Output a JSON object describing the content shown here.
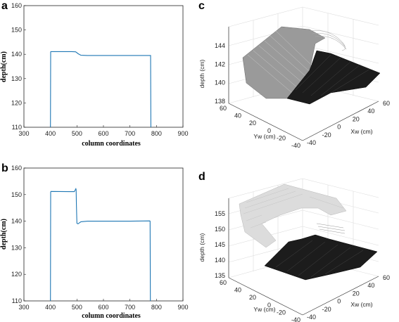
{
  "chart_data": [
    {
      "panel": "a",
      "type": "line",
      "xlabel": "column coordinates",
      "ylabel": "depth(cm)",
      "xlim": [
        300,
        900
      ],
      "ylim": [
        110,
        160
      ],
      "xticks": [
        "300",
        "400",
        "500",
        "600",
        "700",
        "800",
        "900"
      ],
      "yticks": [
        "110",
        "120",
        "130",
        "140",
        "150",
        "160"
      ],
      "color": "#1f77b4",
      "series": [
        {
          "x": [
            400,
            401,
            402,
            480,
            495,
            505,
            515,
            540,
            700,
            777,
            778,
            779
          ],
          "y": [
            110,
            141,
            141.1,
            141.1,
            141.0,
            140.2,
            139.6,
            139.5,
            139.5,
            139.5,
            139.5,
            110
          ]
        }
      ]
    },
    {
      "panel": "b",
      "type": "line",
      "xlabel": "column coordinates",
      "ylabel": "depth(cm)",
      "xlim": [
        300,
        900
      ],
      "ylim": [
        110,
        160
      ],
      "xticks": [
        "300",
        "400",
        "500",
        "600",
        "700",
        "800",
        "900"
      ],
      "yticks": [
        "110",
        "120",
        "130",
        "140",
        "150",
        "160"
      ],
      "color": "#1f77b4",
      "series": [
        {
          "x": [
            400,
            401,
            402,
            470,
            490,
            496,
            497,
            498,
            500,
            504,
            515,
            540,
            700,
            775,
            776,
            777
          ],
          "y": [
            110,
            151,
            151.2,
            151.1,
            151.1,
            152.2,
            151.8,
            146,
            139.2,
            139.0,
            139.8,
            140.0,
            140.0,
            140.1,
            140.0,
            110
          ]
        }
      ]
    },
    {
      "panel": "c",
      "type": "surface3d",
      "zlabel": "depth (cm)",
      "xlabel": "Xw (cm)",
      "ylabel": "Yw (cm)",
      "zticks": [
        "138",
        "140",
        "142",
        "144"
      ],
      "xticks": [
        "-40",
        "-20",
        "0",
        "20",
        "40",
        "60"
      ],
      "yticks": [
        "60",
        "40",
        "20",
        "0",
        "-20",
        "-40"
      ]
    },
    {
      "panel": "d",
      "type": "surface3d",
      "zlabel": "depth (cm)",
      "xlabel": "Xw (cm)",
      "ylabel": "Yw (cm)",
      "zticks": [
        "135",
        "140",
        "145",
        "150",
        "155"
      ],
      "xticks": [
        "-40",
        "-20",
        "0",
        "20",
        "40",
        "60"
      ],
      "yticks": [
        "60",
        "40",
        "20",
        "0",
        "-20",
        "-40"
      ]
    }
  ],
  "colors": {
    "line": "#1f77b4",
    "surface_light": "#9a9a9a",
    "surface_dark": "#1c1c1c",
    "surface_pale": "#d8d8d8",
    "grid": "#dcdcdc",
    "axis": "#333333"
  }
}
